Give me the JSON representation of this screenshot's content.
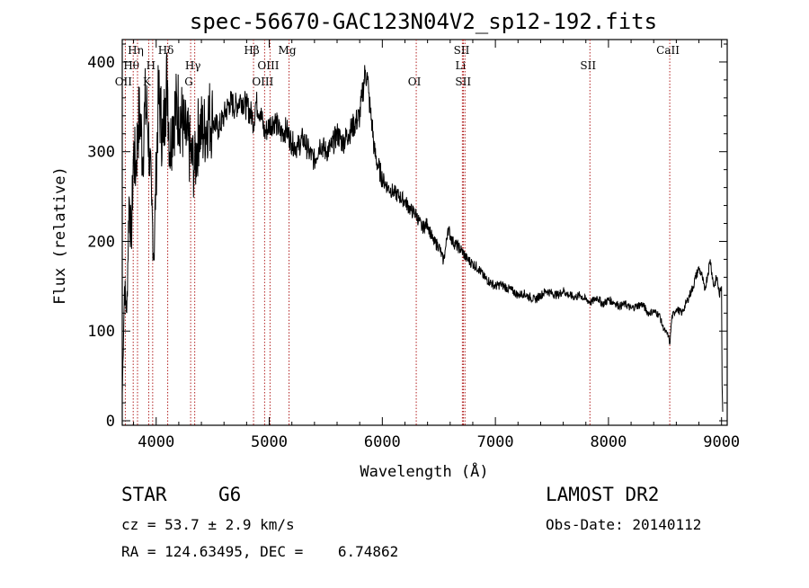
{
  "chart_data": {
    "type": "line",
    "title": "spec-56670-GAC123N04V2_sp12-192.fits",
    "xlabel": "Wavelength (Å)",
    "ylabel": "Flux (relative)",
    "xlim": [
      3700,
      9050
    ],
    "ylim": [
      -5,
      425
    ],
    "x_ticks": [
      4000,
      5000,
      6000,
      7000,
      8000,
      9000
    ],
    "y_ticks": [
      0,
      100,
      200,
      300,
      400
    ],
    "grid": false,
    "series": [
      {
        "color": "#000000",
        "x": [
          3700,
          3720,
          3740,
          3760,
          3780,
          3800,
          3820,
          3840,
          3860,
          3880,
          3900,
          3920,
          3940,
          3960,
          3980,
          4000,
          4020,
          4040,
          4060,
          4080,
          4100,
          4120,
          4150,
          4200,
          4250,
          4300,
          4340,
          4380,
          4420,
          4460,
          4500,
          4550,
          4600,
          4650,
          4700,
          4750,
          4800,
          4850,
          4861,
          4880,
          4920,
          4960,
          5000,
          5050,
          5100,
          5150,
          5200,
          5250,
          5300,
          5350,
          5400,
          5450,
          5500,
          5550,
          5600,
          5650,
          5700,
          5750,
          5800,
          5820,
          5850,
          5870,
          5880,
          5893,
          5910,
          5930,
          5960,
          6000,
          6050,
          6100,
          6150,
          6200,
          6250,
          6300,
          6350,
          6400,
          6450,
          6500,
          6540,
          6563,
          6580,
          6620,
          6700,
          6750,
          6800,
          6850,
          6900,
          6950,
          7000,
          7050,
          7100,
          7150,
          7200,
          7250,
          7300,
          7350,
          7400,
          7450,
          7500,
          7550,
          7600,
          7650,
          7700,
          7750,
          7800,
          7850,
          7900,
          7950,
          8000,
          8050,
          8100,
          8150,
          8200,
          8250,
          8300,
          8350,
          8400,
          8450,
          8480,
          8500,
          8530,
          8542,
          8560,
          8600,
          8650,
          8700,
          8750,
          8770,
          8800,
          8830,
          8850,
          8880,
          8900,
          8930,
          8960,
          8980,
          9000,
          9005,
          9010
        ],
        "y": [
          30,
          150,
          120,
          250,
          200,
          300,
          280,
          330,
          340,
          290,
          350,
          340,
          300,
          240,
          180,
          280,
          360,
          340,
          310,
          360,
          380,
          300,
          340,
          350,
          320,
          300,
          280,
          330,
          320,
          340,
          335,
          325,
          340,
          355,
          350,
          360,
          350,
          340,
          330,
          355,
          345,
          320,
          330,
          335,
          320,
          325,
          310,
          305,
          315,
          300,
          290,
          310,
          300,
          305,
          320,
          310,
          320,
          330,
          340,
          360,
          390,
          380,
          365,
          345,
          330,
          300,
          285,
          270,
          260,
          255,
          250,
          245,
          235,
          230,
          215,
          220,
          200,
          195,
          178,
          195,
          215,
          200,
          190,
          180,
          175,
          170,
          160,
          155,
          150,
          152,
          148,
          145,
          140,
          142,
          138,
          135,
          140,
          145,
          142,
          140,
          145,
          140,
          138,
          140,
          135,
          132,
          138,
          130,
          135,
          132,
          128,
          130,
          125,
          128,
          130,
          120,
          122,
          118,
          105,
          100,
          95,
          85,
          115,
          125,
          120,
          135,
          150,
          160,
          170,
          160,
          145,
          165,
          180,
          150,
          160,
          140,
          150,
          40,
          10
        ]
      }
    ],
    "spectral_lines": [
      {
        "label": "OII",
        "x": 3727
      },
      {
        "label": "Hθ",
        "x": 3797
      },
      {
        "label": "Hη",
        "x": 3835
      },
      {
        "label": "K",
        "x": 3934
      },
      {
        "label": "H",
        "x": 3969
      },
      {
        "label": "Hδ",
        "x": 4102
      },
      {
        "label": "G",
        "x": 4305
      },
      {
        "label": "Hγ",
        "x": 4341
      },
      {
        "label": "Hβ",
        "x": 4861
      },
      {
        "label": "OIII",
        "x": 4959
      },
      {
        "label": "OIII",
        "x": 5007
      },
      {
        "label": "Mg",
        "x": 5175
      },
      {
        "label": "OI",
        "x": 6300
      },
      {
        "label": "Li",
        "x": 6708
      },
      {
        "label": "SII",
        "x": 6717
      },
      {
        "label": "SII",
        "x": 6731
      },
      {
        "label": "SII",
        "x": 7836
      },
      {
        "label": "CaII",
        "x": 8542
      }
    ]
  },
  "info": {
    "object_class": "STAR",
    "subclass": "G6",
    "survey": "LAMOST DR2",
    "redshift": "cz = 53.7 ± 2.9 km/s",
    "obs_date": "Obs-Date: 20140112",
    "coords": "RA = 124.63495, DEC =    6.74862"
  }
}
